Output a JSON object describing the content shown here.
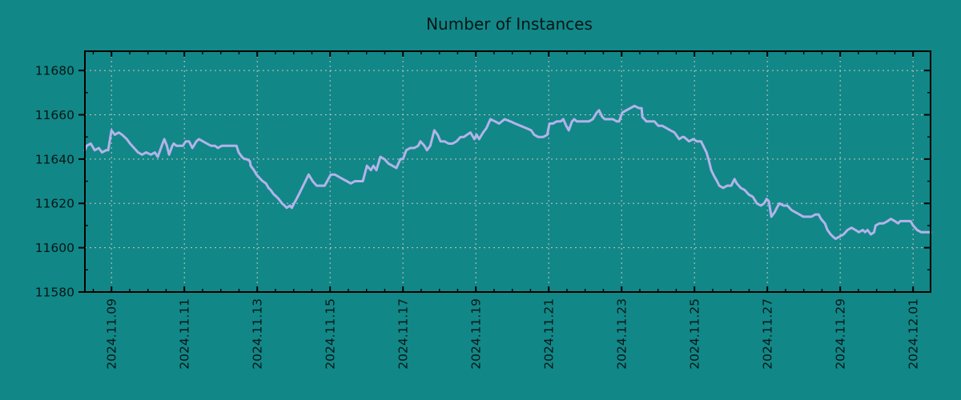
{
  "chart_data": {
    "type": "line",
    "title": "Number of Instances",
    "xlabel": "",
    "ylabel": "",
    "legend": null,
    "grid": "dashed",
    "colors": {
      "background": "#128787",
      "line": "#b3b3ea",
      "grid": "#c6c6c6",
      "axis": "#000000",
      "text": "#051717"
    },
    "y_ticks": [
      11580,
      11600,
      11620,
      11640,
      11660,
      11680
    ],
    "y_minor_step": 10,
    "y_range": [
      11580,
      11688.7
    ],
    "x_ticks": [
      {
        "pos": 1,
        "label": "2024.11.09"
      },
      {
        "pos": 3,
        "label": "2024.11.11"
      },
      {
        "pos": 5,
        "label": "2024.11.13"
      },
      {
        "pos": 7,
        "label": "2024.11.15"
      },
      {
        "pos": 9,
        "label": "2024.11.17"
      },
      {
        "pos": 11,
        "label": "2024.11.19"
      },
      {
        "pos": 13,
        "label": "2024.11.21"
      },
      {
        "pos": 15,
        "label": "2024.11.23"
      },
      {
        "pos": 17,
        "label": "2024.11.25"
      },
      {
        "pos": 19,
        "label": "2024.11.27"
      },
      {
        "pos": 21,
        "label": "2024.11.29"
      },
      {
        "pos": 23,
        "label": "2024.12.01"
      }
    ],
    "x_minor_step": 0.5,
    "x_range": [
      0.27,
      23.48
    ],
    "series": [
      {
        "name": "instances",
        "points": [
          [
            0.27,
            11644
          ],
          [
            0.32,
            11646
          ],
          [
            0.43,
            11647
          ],
          [
            0.54,
            11644
          ],
          [
            0.65,
            11645
          ],
          [
            0.74,
            11643
          ],
          [
            0.85,
            11644
          ],
          [
            0.91,
            11644
          ],
          [
            1.0,
            11653
          ],
          [
            1.09,
            11651
          ],
          [
            1.2,
            11652
          ],
          [
            1.29,
            11651
          ],
          [
            1.42,
            11649
          ],
          [
            1.51,
            11647
          ],
          [
            1.62,
            11645
          ],
          [
            1.73,
            11643
          ],
          [
            1.84,
            11642
          ],
          [
            1.95,
            11643
          ],
          [
            2.08,
            11642
          ],
          [
            2.19,
            11643
          ],
          [
            2.27,
            11641
          ],
          [
            2.38,
            11646
          ],
          [
            2.45,
            11649
          ],
          [
            2.52,
            11646
          ],
          [
            2.58,
            11642
          ],
          [
            2.67,
            11646
          ],
          [
            2.71,
            11647
          ],
          [
            2.78,
            11646
          ],
          [
            2.87,
            11646
          ],
          [
            2.96,
            11646
          ],
          [
            3.04,
            11648
          ],
          [
            3.13,
            11648
          ],
          [
            3.22,
            11645
          ],
          [
            3.33,
            11648
          ],
          [
            3.4,
            11649
          ],
          [
            3.51,
            11648
          ],
          [
            3.62,
            11647
          ],
          [
            3.73,
            11646
          ],
          [
            3.84,
            11646
          ],
          [
            3.92,
            11645
          ],
          [
            4.03,
            11646
          ],
          [
            4.14,
            11646
          ],
          [
            4.25,
            11646
          ],
          [
            4.36,
            11646
          ],
          [
            4.43,
            11646
          ],
          [
            4.49,
            11643
          ],
          [
            4.58,
            11641
          ],
          [
            4.65,
            11640
          ],
          [
            4.71,
            11640
          ],
          [
            4.8,
            11639
          ],
          [
            4.82,
            11637
          ],
          [
            4.91,
            11635
          ],
          [
            4.98,
            11633
          ],
          [
            5.09,
            11631
          ],
          [
            5.15,
            11630
          ],
          [
            5.24,
            11629
          ],
          [
            5.31,
            11627
          ],
          [
            5.37,
            11626
          ],
          [
            5.46,
            11624
          ],
          [
            5.53,
            11623
          ],
          [
            5.59,
            11622
          ],
          [
            5.68,
            11620
          ],
          [
            5.75,
            11619
          ],
          [
            5.81,
            11618
          ],
          [
            5.9,
            11619
          ],
          [
            5.95,
            11618
          ],
          [
            6.01,
            11620
          ],
          [
            6.08,
            11622
          ],
          [
            6.14,
            11624
          ],
          [
            6.23,
            11627
          ],
          [
            6.41,
            11633
          ],
          [
            6.52,
            11630
          ],
          [
            6.63,
            11628
          ],
          [
            6.74,
            11628
          ],
          [
            6.85,
            11628
          ],
          [
            7.02,
            11633
          ],
          [
            7.13,
            11633
          ],
          [
            7.24,
            11632
          ],
          [
            7.35,
            11631
          ],
          [
            7.46,
            11630
          ],
          [
            7.57,
            11629
          ],
          [
            7.68,
            11630
          ],
          [
            7.79,
            11630
          ],
          [
            7.9,
            11630
          ],
          [
            8.01,
            11637
          ],
          [
            8.12,
            11635
          ],
          [
            8.19,
            11637
          ],
          [
            8.27,
            11635
          ],
          [
            8.38,
            11641
          ],
          [
            8.49,
            11640
          ],
          [
            8.6,
            11638
          ],
          [
            8.71,
            11637
          ],
          [
            8.82,
            11636
          ],
          [
            8.93,
            11640
          ],
          [
            9.0,
            11640
          ],
          [
            9.09,
            11644
          ],
          [
            9.2,
            11645
          ],
          [
            9.31,
            11645
          ],
          [
            9.42,
            11646
          ],
          [
            9.48,
            11648
          ],
          [
            9.59,
            11646
          ],
          [
            9.66,
            11644
          ],
          [
            9.75,
            11646
          ],
          [
            9.86,
            11653
          ],
          [
            9.95,
            11651
          ],
          [
            10.03,
            11648
          ],
          [
            10.14,
            11648
          ],
          [
            10.25,
            11647
          ],
          [
            10.36,
            11647
          ],
          [
            10.47,
            11648
          ],
          [
            10.58,
            11650
          ],
          [
            10.67,
            11650
          ],
          [
            10.76,
            11651
          ],
          [
            10.85,
            11652
          ],
          [
            10.96,
            11649
          ],
          [
            11.02,
            11651
          ],
          [
            11.09,
            11649
          ],
          [
            11.2,
            11652
          ],
          [
            11.29,
            11654
          ],
          [
            11.4,
            11658
          ],
          [
            11.53,
            11657
          ],
          [
            11.64,
            11656
          ],
          [
            11.79,
            11658
          ],
          [
            11.95,
            11657
          ],
          [
            12.08,
            11656
          ],
          [
            12.23,
            11655
          ],
          [
            12.38,
            11654
          ],
          [
            12.52,
            11653
          ],
          [
            12.6,
            11651
          ],
          [
            12.71,
            11650
          ],
          [
            12.85,
            11650
          ],
          [
            12.96,
            11651
          ],
          [
            13.02,
            11656
          ],
          [
            13.11,
            11656
          ],
          [
            13.22,
            11657
          ],
          [
            13.33,
            11657
          ],
          [
            13.4,
            11658
          ],
          [
            13.48,
            11655
          ],
          [
            13.55,
            11653
          ],
          [
            13.64,
            11657
          ],
          [
            13.7,
            11658
          ],
          [
            13.77,
            11657
          ],
          [
            13.88,
            11657
          ],
          [
            13.99,
            11657
          ],
          [
            14.1,
            11657
          ],
          [
            14.21,
            11658
          ],
          [
            14.32,
            11661
          ],
          [
            14.38,
            11662
          ],
          [
            14.47,
            11659
          ],
          [
            14.54,
            11658
          ],
          [
            14.65,
            11658
          ],
          [
            14.76,
            11658
          ],
          [
            14.87,
            11657
          ],
          [
            14.93,
            11657
          ],
          [
            15.02,
            11661
          ],
          [
            15.13,
            11662
          ],
          [
            15.24,
            11663
          ],
          [
            15.35,
            11664
          ],
          [
            15.48,
            11663
          ],
          [
            15.55,
            11663
          ],
          [
            15.57,
            11659
          ],
          [
            15.68,
            11657
          ],
          [
            15.79,
            11657
          ],
          [
            15.9,
            11657
          ],
          [
            16.01,
            11655
          ],
          [
            16.12,
            11655
          ],
          [
            16.23,
            11654
          ],
          [
            16.34,
            11653
          ],
          [
            16.45,
            11652
          ],
          [
            16.58,
            11649
          ],
          [
            16.67,
            11650
          ],
          [
            16.71,
            11650
          ],
          [
            16.78,
            11649
          ],
          [
            16.85,
            11648
          ],
          [
            16.96,
            11649
          ],
          [
            17.07,
            11648
          ],
          [
            17.18,
            11648
          ],
          [
            17.24,
            11646
          ],
          [
            17.33,
            11643
          ],
          [
            17.4,
            11639
          ],
          [
            17.46,
            11635
          ],
          [
            17.55,
            11632
          ],
          [
            17.62,
            11630
          ],
          [
            17.68,
            11628
          ],
          [
            17.79,
            11627
          ],
          [
            17.9,
            11628
          ],
          [
            18.01,
            11628
          ],
          [
            18.1,
            11631
          ],
          [
            18.16,
            11629
          ],
          [
            18.27,
            11627
          ],
          [
            18.38,
            11626
          ],
          [
            18.49,
            11624
          ],
          [
            18.6,
            11623
          ],
          [
            18.71,
            11620
          ],
          [
            18.82,
            11619
          ],
          [
            18.91,
            11620
          ],
          [
            18.98,
            11622
          ],
          [
            19.04,
            11621
          ],
          [
            19.11,
            11614
          ],
          [
            19.2,
            11616
          ],
          [
            19.26,
            11618
          ],
          [
            19.33,
            11620
          ],
          [
            19.44,
            11619
          ],
          [
            19.55,
            11619
          ],
          [
            19.66,
            11617
          ],
          [
            19.77,
            11616
          ],
          [
            19.88,
            11615
          ],
          [
            19.99,
            11614
          ],
          [
            20.1,
            11614
          ],
          [
            20.21,
            11614
          ],
          [
            20.32,
            11615
          ],
          [
            20.41,
            11615
          ],
          [
            20.47,
            11613
          ],
          [
            20.58,
            11611
          ],
          [
            20.65,
            11608
          ],
          [
            20.74,
            11606
          ],
          [
            20.8,
            11605
          ],
          [
            20.87,
            11604
          ],
          [
            20.98,
            11605
          ],
          [
            21.09,
            11606
          ],
          [
            21.2,
            11608
          ],
          [
            21.31,
            11609
          ],
          [
            21.42,
            11608
          ],
          [
            21.51,
            11607
          ],
          [
            21.62,
            11608
          ],
          [
            21.68,
            11607
          ],
          [
            21.75,
            11608
          ],
          [
            21.84,
            11606
          ],
          [
            21.93,
            11607
          ],
          [
            21.97,
            11610
          ],
          [
            22.08,
            11611
          ],
          [
            22.19,
            11611
          ],
          [
            22.3,
            11612
          ],
          [
            22.39,
            11613
          ],
          [
            22.5,
            11612
          ],
          [
            22.59,
            11611
          ],
          [
            22.65,
            11612
          ],
          [
            22.74,
            11612
          ],
          [
            22.85,
            11612
          ],
          [
            22.93,
            11612
          ],
          [
            23.0,
            11610
          ],
          [
            23.11,
            11608
          ],
          [
            23.22,
            11607
          ],
          [
            23.33,
            11607
          ],
          [
            23.48,
            11607
          ]
        ]
      }
    ]
  }
}
